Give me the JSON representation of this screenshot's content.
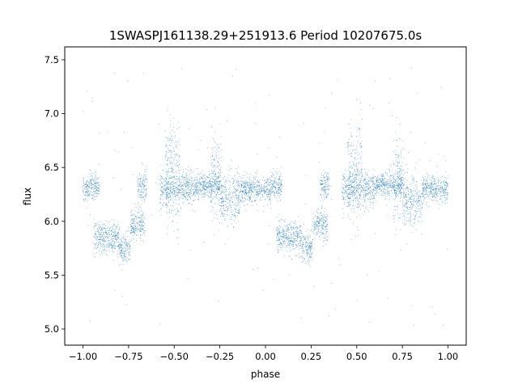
{
  "chart_data": {
    "type": "scatter",
    "title": "1SWASPJ161138.29+251913.6 Period 10207675.0s",
    "xlabel": "phase",
    "ylabel": "flux",
    "xlim": [
      -1.1,
      1.1
    ],
    "ylim": [
      4.85,
      7.62
    ],
    "xticks": [
      -1.0,
      -0.75,
      -0.5,
      -0.25,
      0.0,
      0.25,
      0.5,
      0.75,
      1.0
    ],
    "xtick_labels": [
      "−1.00",
      "−0.75",
      "−0.50",
      "−0.25",
      "0.00",
      "0.25",
      "0.50",
      "0.75",
      "1.00"
    ],
    "yticks": [
      5.0,
      5.5,
      6.0,
      6.5,
      7.0,
      7.5
    ],
    "ytick_labels": [
      "5.0",
      "5.5",
      "6.0",
      "6.5",
      "7.0",
      "7.5"
    ],
    "grid": false,
    "legend": "none",
    "marker_color": "#1f77b4",
    "series": [
      {
        "description": "folded light curve, phase repeated over [-1, 0] and [0, 1]",
        "segments": [
          {
            "phase_range": [
              0.0,
              0.03
            ],
            "flux_mean": 6.3,
            "flux_spread": 0.06
          },
          {
            "phase_range": [
              0.03,
              0.09
            ],
            "flux_mean": 6.33,
            "flux_spread": 0.06
          },
          {
            "phase_range": [
              0.06,
              0.2
            ],
            "flux_mean": 5.85,
            "flux_spread": 0.07
          },
          {
            "phase_range": [
              0.2,
              0.26
            ],
            "flux_mean": 5.75,
            "flux_spread": 0.07
          },
          {
            "phase_range": [
              0.26,
              0.34
            ],
            "flux_mean": 5.97,
            "flux_spread": 0.07
          },
          {
            "phase_range": [
              0.3,
              0.35
            ],
            "flux_mean": 6.32,
            "flux_spread": 0.07
          },
          {
            "phase_range": [
              0.42,
              0.6
            ],
            "flux_mean": 6.3,
            "flux_spread": 0.08
          },
          {
            "phase_range": [
              0.45,
              0.53
            ],
            "flux_mean": 6.45,
            "flux_spread": 0.25
          },
          {
            "phase_range": [
              0.6,
              0.75
            ],
            "flux_mean": 6.33,
            "flux_spread": 0.06
          },
          {
            "phase_range": [
              0.7,
              0.76
            ],
            "flux_mean": 6.4,
            "flux_spread": 0.2
          },
          {
            "phase_range": [
              0.75,
              0.86
            ],
            "flux_mean": 6.2,
            "flux_spread": 0.12
          },
          {
            "phase_range": [
              0.86,
              1.0
            ],
            "flux_mean": 6.3,
            "flux_spread": 0.06
          }
        ]
      }
    ]
  }
}
